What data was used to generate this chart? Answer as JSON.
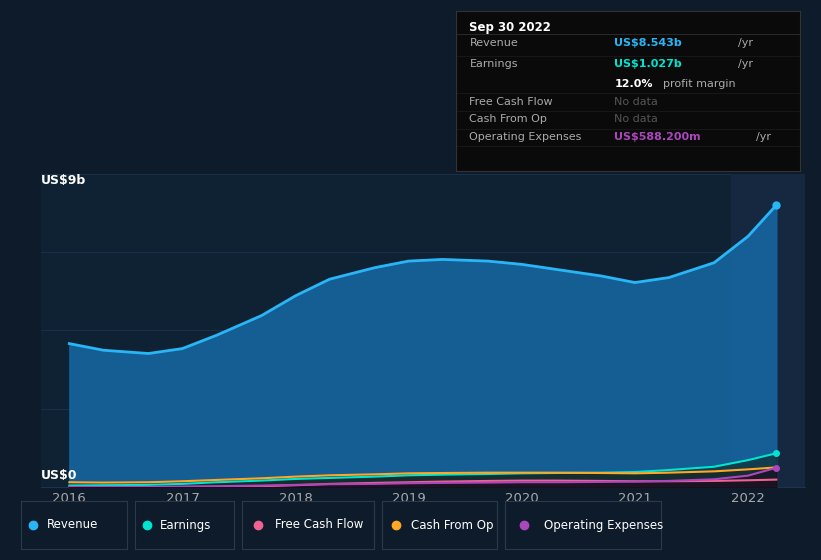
{
  "bg_color": "#0d1b2a",
  "plot_bg": "#0f2233",
  "ylabel_text": "US$9b",
  "ylabel0_text": "US$0",
  "x_years": [
    2016,
    2016.3,
    2016.7,
    2017,
    2017.3,
    2017.7,
    2018,
    2018.3,
    2018.7,
    2019,
    2019.3,
    2019.7,
    2020,
    2020.3,
    2020.7,
    2021,
    2021.3,
    2021.7,
    2022,
    2022.25
  ],
  "revenue": [
    4.35,
    4.15,
    4.05,
    4.2,
    4.6,
    5.2,
    5.8,
    6.3,
    6.65,
    6.85,
    6.9,
    6.85,
    6.75,
    6.6,
    6.4,
    6.2,
    6.35,
    6.8,
    7.6,
    8.543
  ],
  "earnings": [
    0.05,
    0.06,
    0.07,
    0.1,
    0.15,
    0.2,
    0.25,
    0.28,
    0.32,
    0.36,
    0.38,
    0.4,
    0.42,
    0.43,
    0.44,
    0.46,
    0.52,
    0.62,
    0.82,
    1.027
  ],
  "free_cash_flow": [
    0.0,
    0.0,
    -0.02,
    -0.05,
    0.0,
    0.03,
    0.06,
    0.1,
    0.13,
    0.15,
    0.17,
    0.19,
    0.2,
    0.2,
    0.19,
    0.18,
    0.18,
    0.19,
    0.21,
    0.23
  ],
  "cash_from_op": [
    0.15,
    0.14,
    0.15,
    0.18,
    0.22,
    0.27,
    0.32,
    0.36,
    0.39,
    0.42,
    0.43,
    0.44,
    0.44,
    0.44,
    0.43,
    0.42,
    0.44,
    0.48,
    0.54,
    0.6
  ],
  "op_expenses": [
    0.01,
    0.01,
    0.01,
    0.02,
    0.03,
    0.05,
    0.07,
    0.09,
    0.1,
    0.12,
    0.13,
    0.14,
    0.15,
    0.15,
    0.16,
    0.17,
    0.19,
    0.24,
    0.35,
    0.5882
  ],
  "revenue_color": "#29b6f6",
  "earnings_color": "#00e5d1",
  "free_cash_flow_color": "#f06292",
  "cash_from_op_color": "#ffa726",
  "op_expenses_color": "#ab47bc",
  "revenue_fill": "#1565a0",
  "highlight_x_start": 2021.85,
  "highlight_x_end": 2022.5,
  "highlight_color": "#162840",
  "tooltip_bg": "#0a0a0a",
  "tooltip_border": "#333333",
  "grid_color": "#1e3a5a",
  "axis_color": "#1e3a5a",
  "text_color": "#aaaaaa",
  "no_data_color": "#555555",
  "ylim": [
    0,
    9.5
  ],
  "xlim": [
    2015.75,
    2022.5
  ],
  "legend_items": [
    "Revenue",
    "Earnings",
    "Free Cash Flow",
    "Cash From Op",
    "Operating Expenses"
  ],
  "legend_colors": [
    "#29b6f6",
    "#00e5d1",
    "#f06292",
    "#ffa726",
    "#ab47bc"
  ],
  "tooltip_title": "Sep 30 2022",
  "tooltip_revenue_val": "US$8.543b",
  "tooltip_earnings_val": "US$1.027b",
  "tooltip_margin_pct": "12.0%",
  "tooltip_opex_val": "US$588.200m"
}
